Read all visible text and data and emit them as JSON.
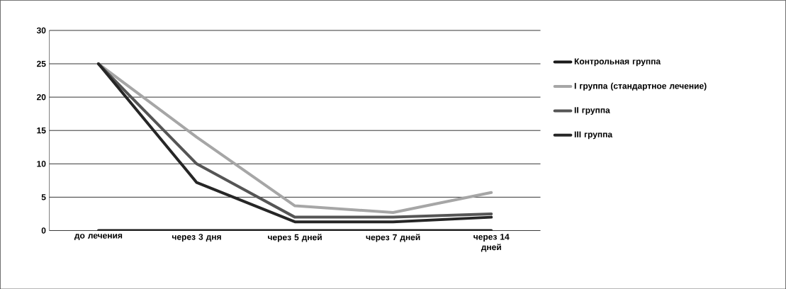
{
  "chart_data": {
    "type": "line",
    "categories": [
      "до лечения",
      "через 3 дня",
      "через 5 дней",
      "через 7 дней",
      "через 14 дней"
    ],
    "series": [
      {
        "name": "Контрольная группа",
        "color": "#1a1a1a",
        "values": [
          0,
          0,
          0,
          0,
          0
        ]
      },
      {
        "name": "I группа (стандартное лечение)",
        "color": "#a6a6a6",
        "values": [
          25,
          14,
          3.7,
          2.7,
          5.7
        ]
      },
      {
        "name": "II группа",
        "color": "#555555",
        "values": [
          25,
          10,
          2,
          2,
          2.5
        ]
      },
      {
        "name": "III группа",
        "color": "#262626",
        "values": [
          25,
          7.2,
          1.3,
          1.3,
          2
        ]
      }
    ],
    "ylim": [
      0,
      30
    ],
    "yticks": [
      0,
      5,
      10,
      15,
      20,
      25,
      30
    ],
    "grid": "y",
    "legend": "right",
    "marker": "none",
    "line_style": "solid"
  }
}
